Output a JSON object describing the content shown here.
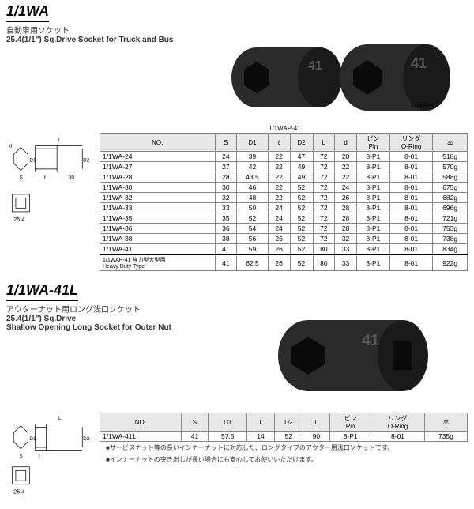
{
  "section1": {
    "title": "1/1WA",
    "subtitle_jp": "自動車用ソケット",
    "subtitle_en": "25.4(1/1\") Sq.Drive Socket for Truck and Bus",
    "img1_label": "1/1WAP-41",
    "img2_label": "1/1WA-41",
    "dim_label": "25.4",
    "headers": [
      "NO.",
      "S",
      "D1",
      "ℓ",
      "D2",
      "L",
      "d",
      "ピン\nPin",
      "リング\nO-Ring",
      "⚖"
    ],
    "rows": [
      [
        "1/1WA-24",
        "24",
        "39",
        "22",
        "47",
        "72",
        "20",
        "8-P1",
        "8-01",
        "518g"
      ],
      [
        "1/1WA-27",
        "27",
        "42",
        "22",
        "49",
        "72",
        "22",
        "8-P1",
        "8-01",
        "570g"
      ],
      [
        "1/1WA-28",
        "28",
        "43.5",
        "22",
        "49",
        "72",
        "22",
        "8-P1",
        "8-01",
        "588g"
      ],
      [
        "1/1WA-30",
        "30",
        "46",
        "22",
        "52",
        "72",
        "24",
        "8-P1",
        "8-01",
        "675g"
      ],
      [
        "1/1WA-32",
        "32",
        "48",
        "22",
        "52",
        "72",
        "26",
        "8-P1",
        "8-01",
        "682g"
      ],
      [
        "1/1WA-33",
        "33",
        "50",
        "24",
        "52",
        "72",
        "28",
        "8-P1",
        "8-01",
        "696g"
      ],
      [
        "1/1WA-35",
        "35",
        "52",
        "24",
        "52",
        "72",
        "28",
        "8-P1",
        "8-01",
        "721g"
      ],
      [
        "1/1WA-36",
        "36",
        "54",
        "24",
        "52",
        "72",
        "28",
        "8-P1",
        "8-01",
        "753g"
      ],
      [
        "1/1WA-38",
        "38",
        "56",
        "26",
        "52",
        "72",
        "32",
        "8-P1",
        "8-01",
        "738g"
      ],
      [
        "1/1WA-41",
        "41",
        "59",
        "26",
        "52",
        "80",
        "33",
        "8-P1",
        "8-01",
        "834g"
      ]
    ],
    "special_row": [
      "1/1WAP-41 強力型大型用\nHeavy Duty Type",
      "41",
      "62.5",
      "26",
      "52",
      "80",
      "33",
      "8-P1",
      "8-01",
      "922g"
    ]
  },
  "section2": {
    "title": "1/1WA-41L",
    "subtitle_jp": "アウターナット用ロング浅口ソケット",
    "subtitle_en1": "25.4(1/1\") Sq.Drive",
    "subtitle_en2": "Shallow Opening Long Socket for Outer Nut",
    "dim_label": "25.4",
    "headers": [
      "NO.",
      "S",
      "D1",
      "ℓ",
      "D2",
      "L",
      "ピン\nPin",
      "リング\nO-Ring",
      "⚖"
    ],
    "rows": [
      [
        "1/1WA-41L",
        "41",
        "57.5",
        "14",
        "52",
        "90",
        "8-P1",
        "8-01",
        "735g"
      ]
    ],
    "note1": "■サービスナット等の長いインナーナットに対応した、ロングタイプのアウター用浅口ソケットです。",
    "note2": "■インナーナットの突き出しが長い場合にも安心してお使いいただけます。"
  }
}
